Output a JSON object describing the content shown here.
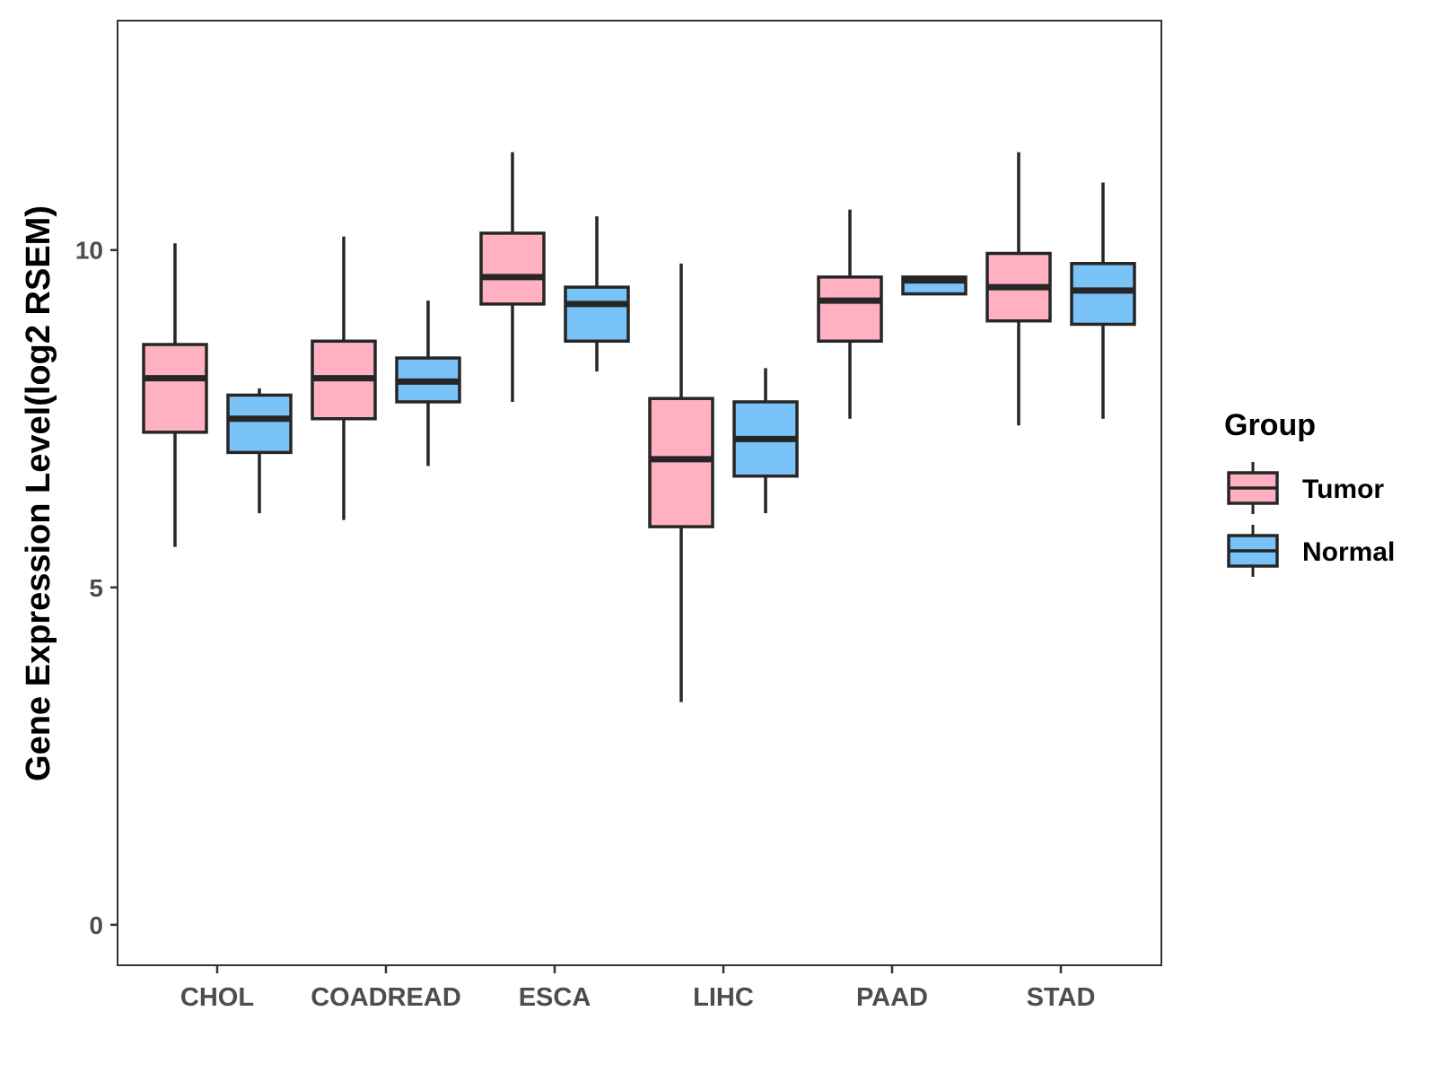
{
  "chart_data": {
    "type": "boxplot",
    "title": "",
    "xlabel": "",
    "ylabel": "Gene Expression Level(log2 RSEM)",
    "ylim": [
      -0.6,
      13.4
    ],
    "yticks": [
      0,
      5,
      10
    ],
    "grid": false,
    "legend_position": "right",
    "legend_title": "Group",
    "categories": [
      "CHOL",
      "COADREAD",
      "ESCA",
      "LIHC",
      "PAAD",
      "STAD"
    ],
    "series": [
      {
        "name": "Tumor",
        "color": "#FFB0C1",
        "boxes": [
          {
            "min": 5.6,
            "q1": 7.3,
            "median": 8.1,
            "q3": 8.6,
            "max": 10.1
          },
          {
            "min": 6.0,
            "q1": 7.5,
            "median": 8.1,
            "q3": 8.65,
            "max": 10.2
          },
          {
            "min": 7.75,
            "q1": 9.2,
            "median": 9.6,
            "q3": 10.25,
            "max": 11.45
          },
          {
            "min": 3.3,
            "q1": 5.9,
            "median": 6.9,
            "q3": 7.8,
            "max": 9.8
          },
          {
            "min": 7.5,
            "q1": 8.65,
            "median": 9.25,
            "q3": 9.6,
            "max": 10.6
          },
          {
            "min": 7.4,
            "q1": 8.95,
            "median": 9.45,
            "q3": 9.95,
            "max": 11.45
          }
        ]
      },
      {
        "name": "Normal",
        "color": "#7AC3F8",
        "boxes": [
          {
            "min": 6.1,
            "q1": 7.0,
            "median": 7.5,
            "q3": 7.85,
            "max": 7.95
          },
          {
            "min": 6.8,
            "q1": 7.75,
            "median": 8.05,
            "q3": 8.4,
            "max": 9.25
          },
          {
            "min": 8.2,
            "q1": 8.65,
            "median": 9.2,
            "q3": 9.45,
            "max": 10.5
          },
          {
            "min": 6.1,
            "q1": 6.65,
            "median": 7.2,
            "q3": 7.75,
            "max": 8.25
          },
          {
            "min": 9.35,
            "q1": 9.35,
            "median": 9.55,
            "q3": 9.6,
            "max": 9.6
          },
          {
            "min": 7.5,
            "q1": 8.9,
            "median": 9.4,
            "q3": 9.8,
            "max": 11.0
          }
        ]
      }
    ]
  },
  "colors": {
    "stroke": "#262626",
    "axis": "#333333",
    "tick_label": "#4D4D4D"
  }
}
